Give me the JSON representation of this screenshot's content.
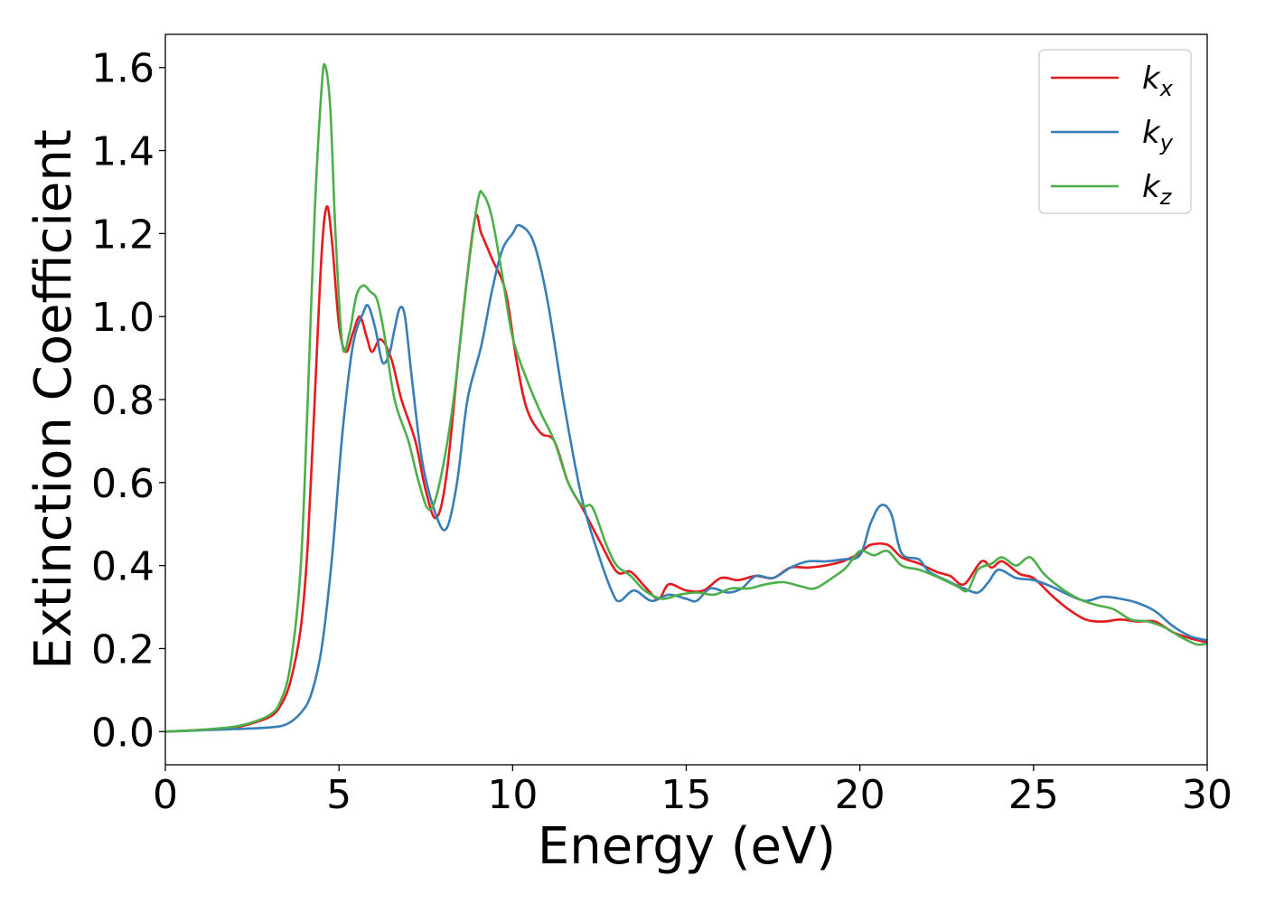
{
  "chart_data": {
    "type": "line",
    "title": "",
    "xlabel": "Energy (eV)",
    "ylabel": "Extinction Coefficient",
    "xlim": [
      0,
      30
    ],
    "ylim": [
      -0.08,
      1.68
    ],
    "xticks": [
      0,
      5,
      10,
      15,
      20,
      25,
      30
    ],
    "xtick_labels": [
      "0",
      "5",
      "10",
      "15",
      "20",
      "25",
      "30"
    ],
    "yticks": [
      0.0,
      0.2,
      0.4,
      0.6,
      0.8,
      1.0,
      1.2,
      1.4,
      1.6
    ],
    "ytick_labels": [
      "0.0",
      "0.2",
      "0.4",
      "0.6",
      "0.8",
      "1.0",
      "1.2",
      "1.4",
      "1.6"
    ],
    "grid": false,
    "legend_position": "top-right",
    "series": [
      {
        "name": "k",
        "subscript": "x",
        "color": "#e41a1c",
        "points": [
          [
            0,
            0.0
          ],
          [
            1,
            0.004
          ],
          [
            2,
            0.01
          ],
          [
            2.5,
            0.02
          ],
          [
            3,
            0.035
          ],
          [
            3.3,
            0.06
          ],
          [
            3.6,
            0.12
          ],
          [
            3.9,
            0.25
          ],
          [
            4.1,
            0.45
          ],
          [
            4.3,
            0.8
          ],
          [
            4.5,
            1.15
          ],
          [
            4.65,
            1.265
          ],
          [
            4.8,
            1.18
          ],
          [
            5.0,
            0.98
          ],
          [
            5.2,
            0.915
          ],
          [
            5.4,
            0.96
          ],
          [
            5.6,
            1.0
          ],
          [
            5.8,
            0.95
          ],
          [
            5.95,
            0.915
          ],
          [
            6.2,
            0.945
          ],
          [
            6.5,
            0.9
          ],
          [
            6.8,
            0.8
          ],
          [
            7.2,
            0.7
          ],
          [
            7.5,
            0.58
          ],
          [
            7.8,
            0.515
          ],
          [
            8.1,
            0.62
          ],
          [
            8.5,
            0.95
          ],
          [
            8.9,
            1.23
          ],
          [
            9.1,
            1.2
          ],
          [
            9.4,
            1.14
          ],
          [
            9.8,
            1.06
          ],
          [
            10.1,
            0.9
          ],
          [
            10.4,
            0.78
          ],
          [
            10.8,
            0.72
          ],
          [
            11.2,
            0.7
          ],
          [
            11.6,
            0.6
          ],
          [
            12.0,
            0.54
          ],
          [
            12.5,
            0.46
          ],
          [
            13.0,
            0.385
          ],
          [
            13.4,
            0.385
          ],
          [
            13.8,
            0.35
          ],
          [
            14.2,
            0.32
          ],
          [
            14.5,
            0.355
          ],
          [
            15.0,
            0.34
          ],
          [
            15.5,
            0.34
          ],
          [
            16.0,
            0.37
          ],
          [
            16.5,
            0.365
          ],
          [
            17.0,
            0.375
          ],
          [
            17.5,
            0.37
          ],
          [
            18.0,
            0.395
          ],
          [
            18.5,
            0.395
          ],
          [
            19.0,
            0.4
          ],
          [
            19.5,
            0.41
          ],
          [
            20.0,
            0.43
          ],
          [
            20.3,
            0.45
          ],
          [
            20.8,
            0.45
          ],
          [
            21.2,
            0.42
          ],
          [
            21.7,
            0.405
          ],
          [
            22.2,
            0.385
          ],
          [
            22.6,
            0.375
          ],
          [
            23.0,
            0.355
          ],
          [
            23.5,
            0.41
          ],
          [
            23.8,
            0.395
          ],
          [
            24.1,
            0.41
          ],
          [
            24.6,
            0.38
          ],
          [
            25.0,
            0.37
          ],
          [
            25.5,
            0.33
          ],
          [
            26.0,
            0.295
          ],
          [
            26.5,
            0.27
          ],
          [
            27.0,
            0.265
          ],
          [
            27.5,
            0.27
          ],
          [
            28.0,
            0.265
          ],
          [
            28.5,
            0.265
          ],
          [
            29.0,
            0.24
          ],
          [
            29.5,
            0.225
          ],
          [
            30,
            0.215
          ]
        ]
      },
      {
        "name": "k",
        "subscript": "y",
        "color": "#377eb8",
        "points": [
          [
            0,
            0.0
          ],
          [
            1,
            0.003
          ],
          [
            2,
            0.006
          ],
          [
            3,
            0.01
          ],
          [
            3.5,
            0.018
          ],
          [
            3.9,
            0.045
          ],
          [
            4.2,
            0.09
          ],
          [
            4.5,
            0.2
          ],
          [
            4.8,
            0.42
          ],
          [
            5.1,
            0.72
          ],
          [
            5.4,
            0.93
          ],
          [
            5.7,
            1.01
          ],
          [
            5.85,
            1.025
          ],
          [
            6.05,
            0.97
          ],
          [
            6.25,
            0.89
          ],
          [
            6.45,
            0.91
          ],
          [
            6.6,
            0.97
          ],
          [
            6.75,
            1.02
          ],
          [
            6.9,
            1.0
          ],
          [
            7.1,
            0.85
          ],
          [
            7.4,
            0.65
          ],
          [
            7.8,
            0.52
          ],
          [
            8.1,
            0.49
          ],
          [
            8.4,
            0.6
          ],
          [
            8.7,
            0.8
          ],
          [
            9.1,
            0.93
          ],
          [
            9.4,
            1.06
          ],
          [
            9.7,
            1.16
          ],
          [
            10.0,
            1.2
          ],
          [
            10.2,
            1.22
          ],
          [
            10.6,
            1.18
          ],
          [
            11.0,
            1.04
          ],
          [
            11.5,
            0.78
          ],
          [
            12.0,
            0.56
          ],
          [
            12.5,
            0.42
          ],
          [
            12.9,
            0.33
          ],
          [
            13.1,
            0.315
          ],
          [
            13.5,
            0.34
          ],
          [
            14.0,
            0.315
          ],
          [
            14.5,
            0.33
          ],
          [
            15.0,
            0.32
          ],
          [
            15.3,
            0.315
          ],
          [
            15.7,
            0.345
          ],
          [
            16.2,
            0.335
          ],
          [
            16.6,
            0.345
          ],
          [
            17.0,
            0.375
          ],
          [
            17.5,
            0.37
          ],
          [
            18.0,
            0.395
          ],
          [
            18.5,
            0.41
          ],
          [
            19.0,
            0.41
          ],
          [
            19.5,
            0.415
          ],
          [
            20.0,
            0.425
          ],
          [
            20.3,
            0.5
          ],
          [
            20.6,
            0.545
          ],
          [
            20.9,
            0.525
          ],
          [
            21.2,
            0.43
          ],
          [
            21.7,
            0.415
          ],
          [
            22.0,
            0.385
          ],
          [
            22.6,
            0.36
          ],
          [
            23.0,
            0.345
          ],
          [
            23.4,
            0.335
          ],
          [
            23.7,
            0.36
          ],
          [
            24.0,
            0.39
          ],
          [
            24.5,
            0.37
          ],
          [
            25.0,
            0.365
          ],
          [
            25.5,
            0.35
          ],
          [
            26.0,
            0.33
          ],
          [
            26.5,
            0.315
          ],
          [
            27.0,
            0.325
          ],
          [
            27.5,
            0.32
          ],
          [
            28.0,
            0.31
          ],
          [
            28.5,
            0.29
          ],
          [
            29.0,
            0.255
          ],
          [
            29.5,
            0.23
          ],
          [
            30,
            0.22
          ]
        ]
      },
      {
        "name": "k",
        "subscript": "z",
        "color": "#4daf4a",
        "points": [
          [
            0,
            0.0
          ],
          [
            1,
            0.004
          ],
          [
            2,
            0.012
          ],
          [
            2.5,
            0.022
          ],
          [
            3,
            0.04
          ],
          [
            3.3,
            0.07
          ],
          [
            3.6,
            0.16
          ],
          [
            3.9,
            0.4
          ],
          [
            4.1,
            0.8
          ],
          [
            4.3,
            1.25
          ],
          [
            4.5,
            1.55
          ],
          [
            4.6,
            1.605
          ],
          [
            4.75,
            1.5
          ],
          [
            4.9,
            1.2
          ],
          [
            5.1,
            0.93
          ],
          [
            5.3,
            0.96
          ],
          [
            5.5,
            1.05
          ],
          [
            5.7,
            1.075
          ],
          [
            5.9,
            1.06
          ],
          [
            6.1,
            1.04
          ],
          [
            6.3,
            0.96
          ],
          [
            6.6,
            0.8
          ],
          [
            7.0,
            0.7
          ],
          [
            7.3,
            0.6
          ],
          [
            7.6,
            0.535
          ],
          [
            7.9,
            0.6
          ],
          [
            8.3,
            0.8
          ],
          [
            8.7,
            1.1
          ],
          [
            9.0,
            1.28
          ],
          [
            9.15,
            1.295
          ],
          [
            9.4,
            1.24
          ],
          [
            9.7,
            1.1
          ],
          [
            10.0,
            0.95
          ],
          [
            10.4,
            0.85
          ],
          [
            10.8,
            0.77
          ],
          [
            11.2,
            0.7
          ],
          [
            11.6,
            0.6
          ],
          [
            12.0,
            0.545
          ],
          [
            12.3,
            0.54
          ],
          [
            12.7,
            0.45
          ],
          [
            13.0,
            0.4
          ],
          [
            13.4,
            0.375
          ],
          [
            13.8,
            0.34
          ],
          [
            14.3,
            0.32
          ],
          [
            14.8,
            0.33
          ],
          [
            15.3,
            0.335
          ],
          [
            15.8,
            0.33
          ],
          [
            16.3,
            0.345
          ],
          [
            16.8,
            0.345
          ],
          [
            17.3,
            0.355
          ],
          [
            17.8,
            0.36
          ],
          [
            18.3,
            0.35
          ],
          [
            18.7,
            0.345
          ],
          [
            19.2,
            0.37
          ],
          [
            19.6,
            0.395
          ],
          [
            20.0,
            0.435
          ],
          [
            20.4,
            0.425
          ],
          [
            20.8,
            0.435
          ],
          [
            21.2,
            0.4
          ],
          [
            21.7,
            0.39
          ],
          [
            22.3,
            0.37
          ],
          [
            22.8,
            0.35
          ],
          [
            23.1,
            0.34
          ],
          [
            23.4,
            0.39
          ],
          [
            23.8,
            0.405
          ],
          [
            24.1,
            0.42
          ],
          [
            24.5,
            0.4
          ],
          [
            24.9,
            0.42
          ],
          [
            25.3,
            0.38
          ],
          [
            25.8,
            0.345
          ],
          [
            26.3,
            0.32
          ],
          [
            26.8,
            0.305
          ],
          [
            27.3,
            0.295
          ],
          [
            27.8,
            0.27
          ],
          [
            28.3,
            0.265
          ],
          [
            28.8,
            0.25
          ],
          [
            29.3,
            0.225
          ],
          [
            29.7,
            0.21
          ],
          [
            30,
            0.212
          ]
        ]
      }
    ]
  }
}
